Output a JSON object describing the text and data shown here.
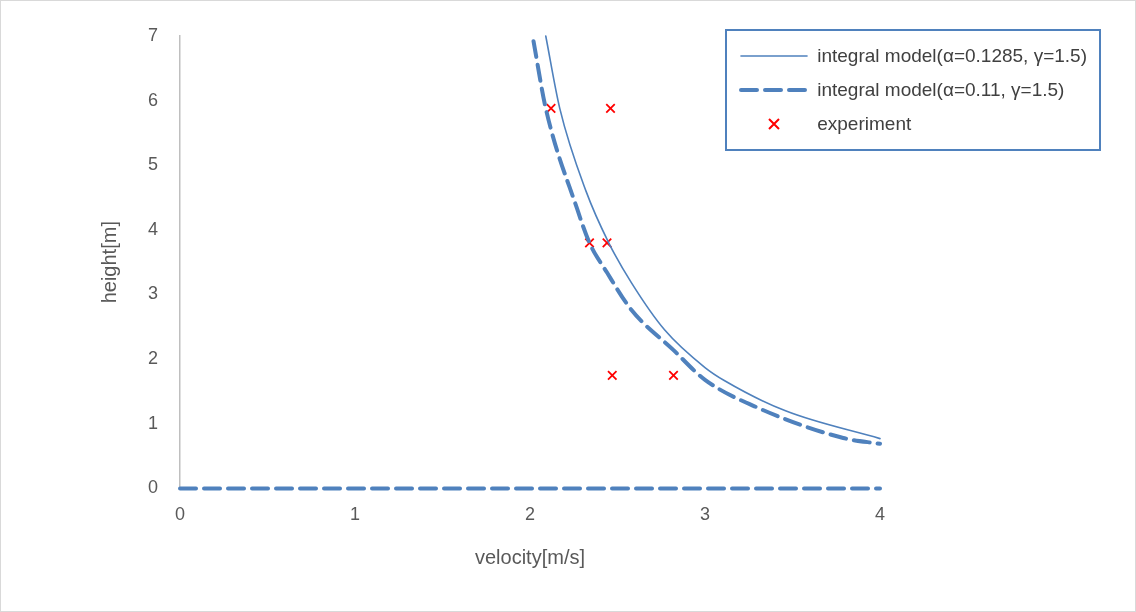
{
  "chart_data": {
    "type": "line",
    "xlabel": "velocity[m/s]",
    "ylabel": "height[m]",
    "xlim": [
      0,
      4
    ],
    "xticks": [
      0,
      1,
      2,
      3,
      4
    ],
    "ylim": [
      0,
      7
    ],
    "yticks": [
      0,
      1,
      2,
      3,
      4,
      5,
      6,
      7
    ],
    "grid": false,
    "legend": "top right",
    "series": [
      {
        "name": "integral model(α=0.1285, γ=1.5)",
        "line_style": "solid",
        "marker": "none",
        "color": "#4f81bd",
        "x": [
          2.09,
          2.17,
          2.32,
          2.45,
          2.58,
          2.77,
          3.0,
          3.11,
          3.46,
          4
        ],
        "values": [
          7.0,
          5.88,
          4.6,
          3.8,
          3.18,
          2.45,
          1.87,
          1.67,
          1.2,
          0.77
        ]
      },
      {
        "name": "integral model(α=0.11, γ=1.5)",
        "line_style": "dashed",
        "marker": "none",
        "color": "#4f81bd",
        "x": [
          2.02,
          2.09,
          2.27,
          2.34,
          2.44,
          2.58,
          2.82,
          3.0,
          3.3,
          3.79,
          4
        ],
        "values": [
          6.92,
          5.88,
          4.32,
          3.8,
          3.34,
          2.76,
          2.14,
          1.68,
          1.25,
          0.78,
          0.69
        ]
      },
      {
        "line_style": "dashed",
        "marker": "none",
        "color": "#4f81bd",
        "x": [
          0,
          4
        ],
        "values": [
          0,
          0
        ]
      },
      {
        "name": "experiment",
        "type": "scatter",
        "marker": "cross",
        "color": "#ff0000",
        "x": [
          2.12,
          2.46,
          2.34,
          2.44,
          2.47,
          2.82
        ],
        "values": [
          5.88,
          5.88,
          3.8,
          3.8,
          1.75,
          1.75
        ]
      }
    ]
  }
}
